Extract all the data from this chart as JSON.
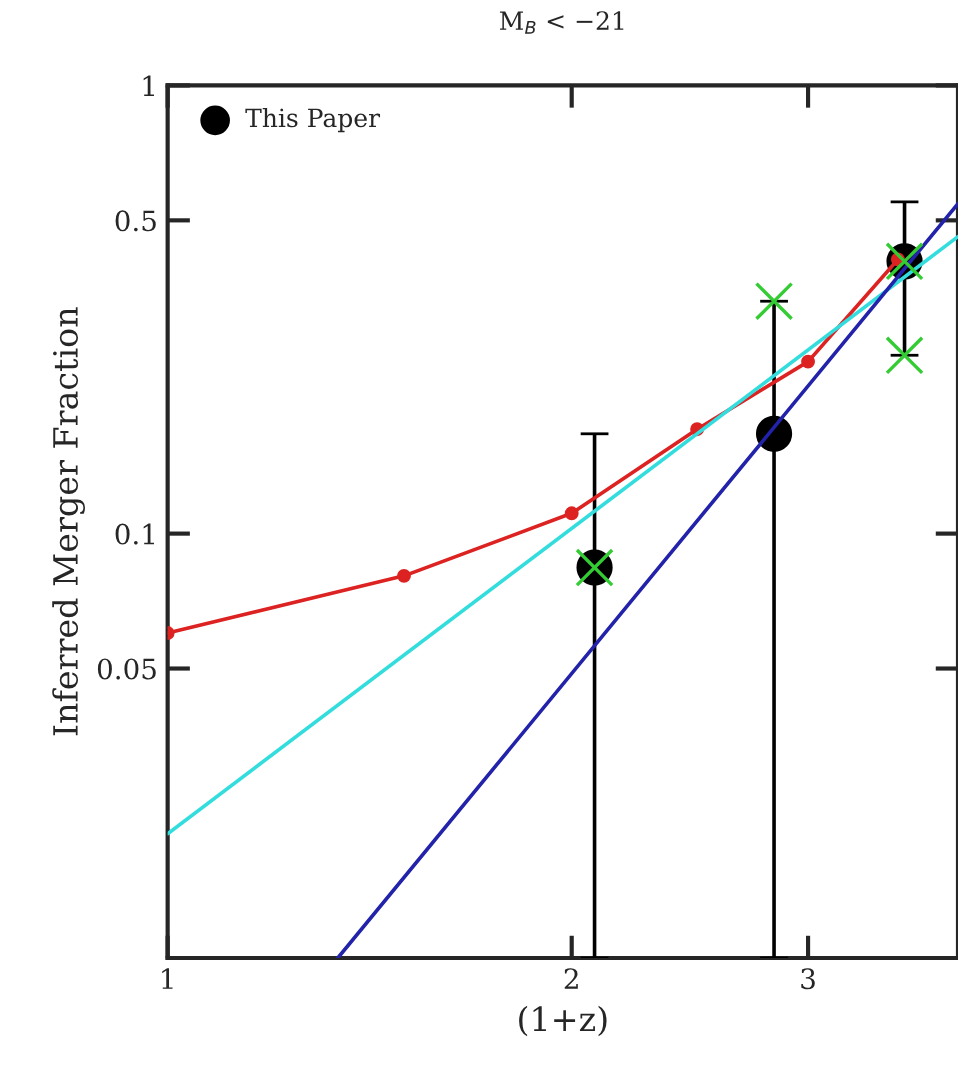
{
  "chart_data": {
    "type": "line",
    "title": "M$_{B}$ < −21",
    "xlabel": "(1+z)",
    "ylabel": "Inferred Merger Fraction",
    "log": "xy",
    "xlim": [
      1,
      3.88
    ],
    "ylim": [
      0.0113,
      1
    ],
    "xticks": [
      1,
      2,
      3
    ],
    "yticks": [
      0.05,
      0.1,
      0.5,
      1
    ],
    "legend": "top left",
    "grid": false,
    "series": [
      {
        "color": "#dd2222",
        "marker": "circle",
        "x": [
          1,
          1.5,
          2,
          2.48,
          3,
          3.5
        ],
        "values": [
          0.06,
          0.0805,
          0.111,
          0.171,
          0.242,
          0.409
        ]
      },
      {
        "color": "#33dddd",
        "marker": "none",
        "x": [
          1,
          3.88
        ],
        "values": [
          0.0214,
          0.46
        ]
      },
      {
        "color": "#2222aa",
        "marker": "none",
        "x": [
          1.339,
          3.88
        ],
        "values": [
          0.0113,
          0.545
        ]
      },
      {
        "type": "scatter",
        "name": "This Paper",
        "color": "#000000",
        "marker": "circle",
        "x": [
          2.08,
          2.83,
          3.54
        ],
        "values": [
          0.084,
          0.167,
          0.405
        ],
        "errors": [
          [
            0.0113,
            0.167
          ],
          [
            0.0113,
            0.33
          ],
          [
            0.25,
            0.55
          ]
        ]
      },
      {
        "type": "scatter",
        "color": "#33cc33",
        "marker": "cross",
        "x": [
          2.08,
          2.83,
          3.54,
          3.54
        ],
        "values": [
          0.084,
          0.33,
          0.25,
          0.405
        ]
      }
    ]
  }
}
